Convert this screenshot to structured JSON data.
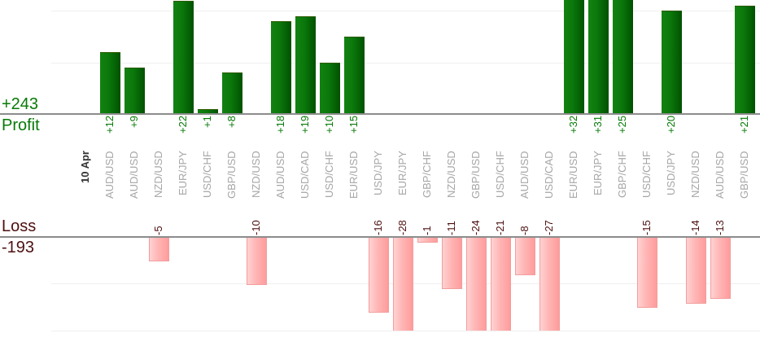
{
  "ui": {
    "profit_total": "+243",
    "profit_axis_label": "Profit",
    "loss_axis_label": "Loss",
    "loss_total": "-193",
    "date_label": "10 Apr"
  },
  "colors": {
    "profit_text": "#077a07",
    "loss_text": "#4d1010",
    "bar_green_light": "#128212",
    "bar_green_dark": "#015101",
    "bar_pink_light": "#ffd2d2",
    "bar_pink_dark": "#ff9c9c",
    "bar_pink_border": "#f29e9e",
    "category_text": "#a6a6a6",
    "date_text": "#333333",
    "axis_line": "#8c8c8c",
    "grid_line": "#efefef"
  },
  "chart_data": {
    "type": "bar",
    "title": "",
    "date": "10 Apr",
    "categories": [
      "AUD/USD",
      "AUD/USD",
      "NZD/USD",
      "EUR/JPY",
      "USD/CHF",
      "GBP/USD",
      "NZD/USD",
      "AUD/USD",
      "USD/CAD",
      "USD/CHF",
      "EUR/USD",
      "USD/JPY",
      "EUR/JPY",
      "GBP/CHF",
      "NZD/USD",
      "GBP/USD",
      "USD/CHF",
      "AUD/USD",
      "USD/CAD",
      "EUR/USD",
      "EUR/JPY",
      "GBP/CHF",
      "USD/CHF",
      "USD/JPY",
      "NZD/USD",
      "AUD/USD",
      "GBP/USD"
    ],
    "values": [
      12,
      9,
      -5,
      22,
      1,
      8,
      -10,
      18,
      19,
      10,
      15,
      -16,
      -28,
      -1,
      -11,
      -24,
      -21,
      -8,
      -27,
      32,
      31,
      25,
      -15,
      20,
      -14,
      -13,
      21
    ],
    "value_labels": [
      "+12",
      "+9",
      "-5",
      "+22",
      "+1",
      "+8",
      "-10",
      "+18",
      "+19",
      "+10",
      "+15",
      "-16",
      "-28",
      "-1",
      "-11",
      "-24",
      "-21",
      "-8",
      "-27",
      "+32",
      "+31",
      "+25",
      "-15",
      "+20",
      "-14",
      "-13",
      "+21"
    ],
    "profit_total": 243,
    "loss_total": -193,
    "panels": [
      {
        "name": "profit",
        "axis_label": "Profit",
        "total_label": "+243",
        "visible_value_range": [
          0,
          22
        ],
        "bars_clipped_above": [
          32,
          31,
          25
        ]
      },
      {
        "name": "loss",
        "axis_label": "Loss",
        "total_label": "-193",
        "visible_value_range": [
          0,
          -20
        ],
        "bars_clipped_below": [
          -28,
          -24,
          -21,
          -27
        ]
      }
    ],
    "grid": true,
    "gridline_values": {
      "profit": [
        10,
        20
      ],
      "loss": [
        -10,
        -20
      ]
    },
    "legend": "none"
  }
}
